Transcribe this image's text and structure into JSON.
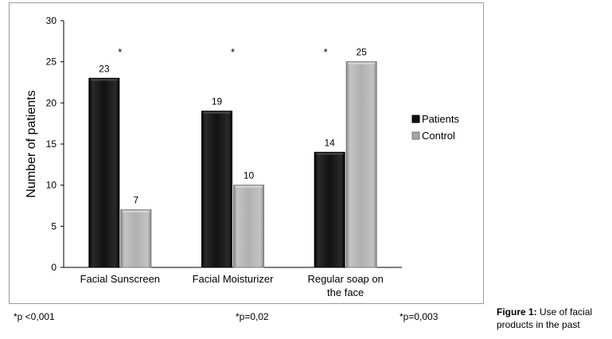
{
  "chart_data": {
    "type": "bar",
    "categories": [
      "Facial Sunscreen",
      "Facial Moisturizer",
      "Regular soap on the face"
    ],
    "category_lines": [
      [
        "Facial Sunscreen"
      ],
      [
        "Facial Moisturizer"
      ],
      [
        "Regular soap on",
        "the face"
      ]
    ],
    "series": [
      {
        "name": "Patients",
        "values": [
          23,
          19,
          14
        ],
        "color": "#111111"
      },
      {
        "name": "Control",
        "values": [
          7,
          10,
          25
        ],
        "color": "#a6a6a6"
      }
    ],
    "ylabel": "Number of patients",
    "ylim": [
      0,
      30
    ],
    "yticks": [
      0,
      5,
      10,
      15,
      20,
      25,
      30
    ],
    "significance_marks": [
      "*",
      "*",
      "*"
    ],
    "legend_position": "right",
    "grid": false
  },
  "footnotes": [
    "*p <0,001",
    "*p=0,02",
    "*p=0,003"
  ],
  "caption": {
    "label": "Figure 1:",
    "text": " Use of facial products in the past"
  }
}
